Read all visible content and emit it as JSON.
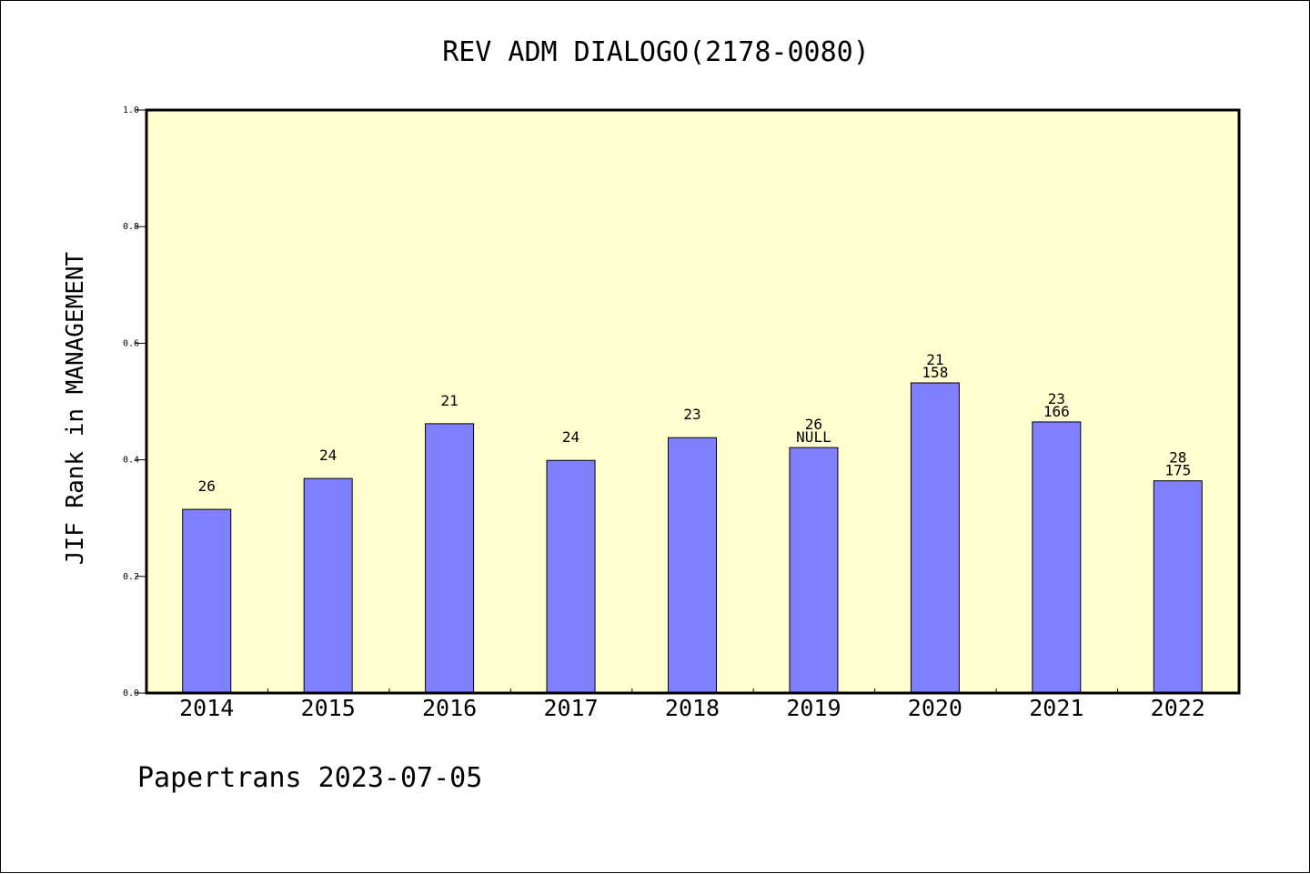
{
  "chart_data": {
    "type": "bar",
    "title": "REV ADM DIALOGO(2178-0080)",
    "xlabel": "",
    "ylabel": "JIF Rank in MANAGEMENT",
    "ylim": [
      0,
      1.0
    ],
    "yticks": [
      "0.0",
      "0.2",
      "0.4",
      "0.6",
      "0.8",
      "1.0"
    ],
    "grid": false,
    "categories": [
      "2014",
      "2015",
      "2016",
      "2017",
      "2018",
      "2019",
      "2020",
      "2021",
      "2022"
    ],
    "values": [
      0.315,
      0.368,
      0.462,
      0.399,
      0.438,
      0.421,
      0.532,
      0.465,
      0.364
    ],
    "annotations": [
      {
        "top": "",
        "bottom": "26"
      },
      {
        "top": "",
        "bottom": "24"
      },
      {
        "top": "",
        "bottom": "21"
      },
      {
        "top": "",
        "bottom": "24"
      },
      {
        "top": "",
        "bottom": "23"
      },
      {
        "top": "26",
        "bottom": "NULL"
      },
      {
        "top": "21",
        "bottom": "158"
      },
      {
        "top": "23",
        "bottom": "166"
      },
      {
        "top": "28",
        "bottom": "175"
      }
    ],
    "colors": {
      "plot_background": "#FFFFD0",
      "bar_fill": "#8080FF",
      "bar_stroke": "#000000",
      "axis": "#000000"
    }
  },
  "footer": {
    "text": "Papertrans 2023-07-05"
  }
}
